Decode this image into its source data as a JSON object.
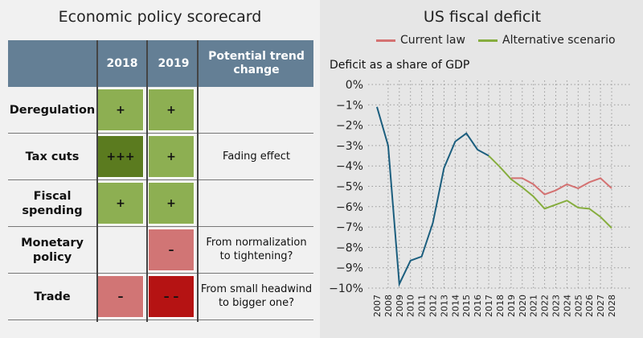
{
  "scorecard": {
    "title": "Economic policy scorecard",
    "headers": [
      "",
      "2018",
      "2019",
      "Potential trend change"
    ],
    "rows": [
      {
        "label": "Deregulation",
        "y2018": "+",
        "c2018": "#8daf52",
        "y2019": "+",
        "c2019": "#8daf52",
        "trend": ""
      },
      {
        "label": "Tax cuts",
        "y2018": "+++",
        "c2018": "#5b7b1f",
        "y2019": "+",
        "c2019": "#8daf52",
        "trend": "Fading effect"
      },
      {
        "label": "Fiscal spending",
        "y2018": "+",
        "c2018": "#8daf52",
        "y2019": "+",
        "c2019": "#8daf52",
        "trend": ""
      },
      {
        "label": "Monetary policy",
        "y2018": "",
        "c2018": "",
        "y2019": "–",
        "c2019": "#d17575",
        "trend": "From normalization to tightening?"
      },
      {
        "label": "Trade",
        "y2018": "–",
        "c2018": "#d17575",
        "y2019": "– –",
        "c2019": "#b51313",
        "trend": "From small headwind to bigger one?"
      }
    ]
  },
  "chart_data": {
    "type": "line",
    "title": "US fiscal deficit",
    "ylabel": "Deficit as a share of GDP",
    "ylim": [
      -10,
      0
    ],
    "yticks": [
      "0%",
      "−1%",
      "−2%",
      "−3%",
      "−4%",
      "−5%",
      "−6%",
      "−7%",
      "−8%",
      "−9%",
      "−10%"
    ],
    "x": [
      2007,
      2008,
      2009,
      2010,
      2011,
      2012,
      2013,
      2014,
      2015,
      2016,
      2017,
      2018,
      2019,
      2020,
      2021,
      2022,
      2023,
      2024,
      2025,
      2026,
      2027,
      2028
    ],
    "grid": true,
    "legend_position": "top",
    "series": [
      {
        "name": "",
        "color": "#1b5e7e",
        "x": [
          2007,
          2008,
          2009,
          2010,
          2011,
          2012,
          2013,
          2014,
          2015,
          2016,
          2017
        ],
        "values": [
          -1.1,
          -3.0,
          -9.8,
          -8.65,
          -8.45,
          -6.8,
          -4.1,
          -2.8,
          -2.4,
          -3.2,
          -3.5
        ]
      },
      {
        "name": "Current law",
        "color": "#d47272",
        "x": [
          2019,
          2020,
          2021,
          2022,
          2023,
          2024,
          2025,
          2026,
          2027,
          2028
        ],
        "values": [
          -4.6,
          -4.6,
          -4.9,
          -5.4,
          -5.2,
          -4.9,
          -5.1,
          -4.8,
          -4.6,
          -5.1
        ]
      },
      {
        "name": "Alternative scenario",
        "color": "#86ad3e",
        "x": [
          2017,
          2018,
          2019,
          2020,
          2021,
          2022,
          2023,
          2024,
          2025,
          2026,
          2027,
          2028
        ],
        "values": [
          -3.5,
          -4.05,
          -4.65,
          -5.05,
          -5.5,
          -6.1,
          -5.9,
          -5.7,
          -6.05,
          -6.1,
          -6.5,
          -7.05
        ]
      }
    ]
  }
}
